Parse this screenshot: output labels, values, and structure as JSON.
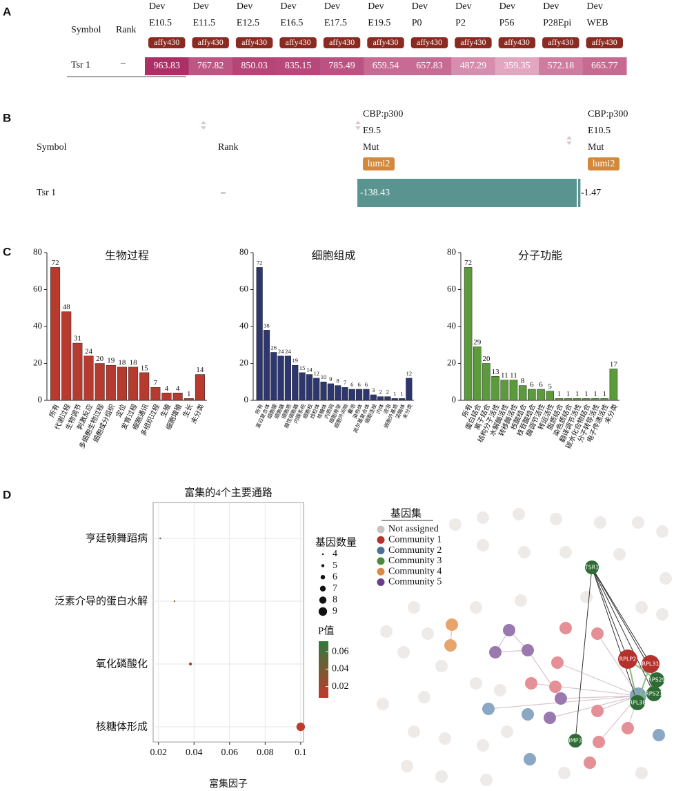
{
  "panel_a": {
    "label": "A",
    "symbol_header": "Symbol",
    "rank_header": "Rank",
    "columns": [
      {
        "lines": [
          "Dev",
          "E10.5"
        ],
        "badge": "affy430"
      },
      {
        "lines": [
          "Dev",
          "E11.5"
        ],
        "badge": "affy430"
      },
      {
        "lines": [
          "Dev",
          "E12.5"
        ],
        "badge": "affy430"
      },
      {
        "lines": [
          "Dev",
          "E16.5"
        ],
        "badge": "affy430"
      },
      {
        "lines": [
          "Dev",
          "E17.5"
        ],
        "badge": "affy430"
      },
      {
        "lines": [
          "Dev",
          "E19.5"
        ],
        "badge": "affy430"
      },
      {
        "lines": [
          "Dev",
          "P0"
        ],
        "badge": "affy430"
      },
      {
        "lines": [
          "Dev",
          "P2"
        ],
        "badge": "affy430"
      },
      {
        "lines": [
          "Dev",
          "P56"
        ],
        "badge": "affy430"
      },
      {
        "lines": [
          "Dev",
          "P28Epi"
        ],
        "badge": "affy430"
      },
      {
        "lines": [
          "Dev",
          "WEB"
        ],
        "badge": "affy430"
      }
    ],
    "row": {
      "symbol": "Tsr 1",
      "rank": "–",
      "values": [
        963.83,
        767.82,
        850.03,
        835.15,
        785.49,
        659.54,
        657.83,
        487.29,
        359.35,
        572.18,
        665.77
      ]
    }
  },
  "panel_b": {
    "label": "B",
    "symbol_header": "Symbol",
    "rank_header": "Rank",
    "columns": [
      {
        "lines": [
          "CBP:p300",
          "E9.5",
          "Mut"
        ],
        "badge": "lumi2"
      },
      {
        "lines": [
          "CBP:p300",
          "E10.5",
          "Mut"
        ],
        "badge": "lumi2"
      }
    ],
    "row": {
      "symbol": "Tsr 1",
      "rank": "–",
      "values": [
        -138.43,
        -1.47
      ]
    }
  },
  "panel_c": {
    "label": "C"
  },
  "panel_d": {
    "label": "D"
  },
  "chart_data": [
    {
      "type": "bar",
      "title": "生物过程",
      "color": "#b73a2f",
      "categories": [
        "所有",
        "代谢过程",
        "生物调节",
        "刺激反应",
        "多细胞生物过程",
        "细胞成分组织",
        "定位",
        "发育过程",
        "细胞通讯",
        "多组织过程",
        "生殖",
        "细胞增殖",
        "生长",
        "未分类"
      ],
      "values": [
        72,
        48,
        31,
        24,
        20,
        19,
        18,
        18,
        15,
        7,
        4,
        4,
        1,
        14
      ],
      "ylim": [
        0,
        80
      ],
      "yticks": [
        0,
        20,
        40,
        60,
        80
      ]
    },
    {
      "type": "bar",
      "title": "细胞组成",
      "color": "#2e3670",
      "categories": [
        "所有",
        "蛋白复合体",
        "细胞膜",
        "细胞器",
        "细胞质",
        "膜性细胞器",
        "内膜系统",
        "细胞核",
        "线粒体",
        "核糖体",
        "内质网",
        "细胞骨架",
        "细胞外间隙",
        "囊泡",
        "染色体",
        "高尔基复合体",
        "细胞连接",
        "内体",
        "液泡",
        "细胞外基质",
        "溶酶体",
        "未分类"
      ],
      "values": [
        72,
        38,
        26,
        24,
        24,
        19,
        15,
        14,
        12,
        10,
        9,
        8,
        7,
        6,
        6,
        6,
        3,
        2,
        2,
        1,
        1,
        12
      ],
      "ylim": [
        0,
        80
      ],
      "yticks": [
        0,
        20,
        40,
        60,
        80
      ]
    },
    {
      "type": "bar",
      "title": "分子功能",
      "color": "#5b9b3b",
      "categories": [
        "所有",
        "蛋白结合",
        "离子结合",
        "结构分子活性",
        "水解酶活性",
        "转移酶活性",
        "核酸结合",
        "核苷酸结合",
        "酶调节活性",
        "转运活性",
        "脂质结合",
        "染色质结合",
        "翻译调节活性",
        "碳水化合物结合",
        "分子转导活性",
        "电子传递活性",
        "未分类"
      ],
      "values": [
        72,
        29,
        20,
        13,
        11,
        11,
        8,
        6,
        6,
        5,
        1,
        1,
        1,
        1,
        1,
        1,
        17
      ],
      "ylim": [
        0,
        80
      ],
      "yticks": [
        0,
        20,
        40,
        60,
        80
      ]
    },
    {
      "type": "scatter",
      "title": "富集的4个主要通路",
      "x_label": "富集因子",
      "categories": [
        "亨廷顿舞蹈病",
        "泛素介导的蛋白水解",
        "氧化磷酸化",
        "核糖体形成"
      ],
      "x": [
        0.021,
        0.029,
        0.038,
        0.1
      ],
      "sizes": [
        4,
        4,
        5,
        9
      ],
      "pvalues": [
        0.062,
        0.035,
        0.02,
        0.008
      ],
      "xlim": [
        0.017,
        0.1016
      ],
      "xticks": [
        0.02,
        0.04,
        0.06,
        0.08,
        0.1
      ],
      "size_legend": {
        "title": "基因数量",
        "values": [
          4,
          5,
          6,
          7,
          8,
          9
        ]
      },
      "color_legend": {
        "title": "P值",
        "clim": [
          0.007,
          0.072
        ],
        "ticks": [
          0.02,
          0.04,
          0.06
        ],
        "colors": [
          "#c0392b",
          "#2f7a3a"
        ]
      },
      "grid": true
    }
  ],
  "network": {
    "legend_title": "基因集",
    "communities": [
      {
        "name": "Not assigned",
        "color": "#c9c1bd"
      },
      {
        "name": "Community 1",
        "color": "#b5312b"
      },
      {
        "name": "Community 2",
        "color": "#4d6f95"
      },
      {
        "name": "Community 3",
        "color": "#4a8a3c"
      },
      {
        "name": "Community 4",
        "color": "#d98a45"
      },
      {
        "name": "Community 5",
        "color": "#6a3d8a"
      }
    ],
    "nodes": [
      {
        "label": "TSR1",
        "color": "#2e6b35"
      },
      {
        "label": "RPLP2",
        "color": "#b5312b"
      },
      {
        "label": "RPL31",
        "color": "#b5312b"
      },
      {
        "label": "RPS29",
        "color": "#2e6b35"
      },
      {
        "label": "RPS21",
        "color": "#2e6b35"
      },
      {
        "label": "RPL38",
        "color": "#2e6b35"
      },
      {
        "label": "IMP3",
        "color": "#2e6b35"
      }
    ]
  }
}
